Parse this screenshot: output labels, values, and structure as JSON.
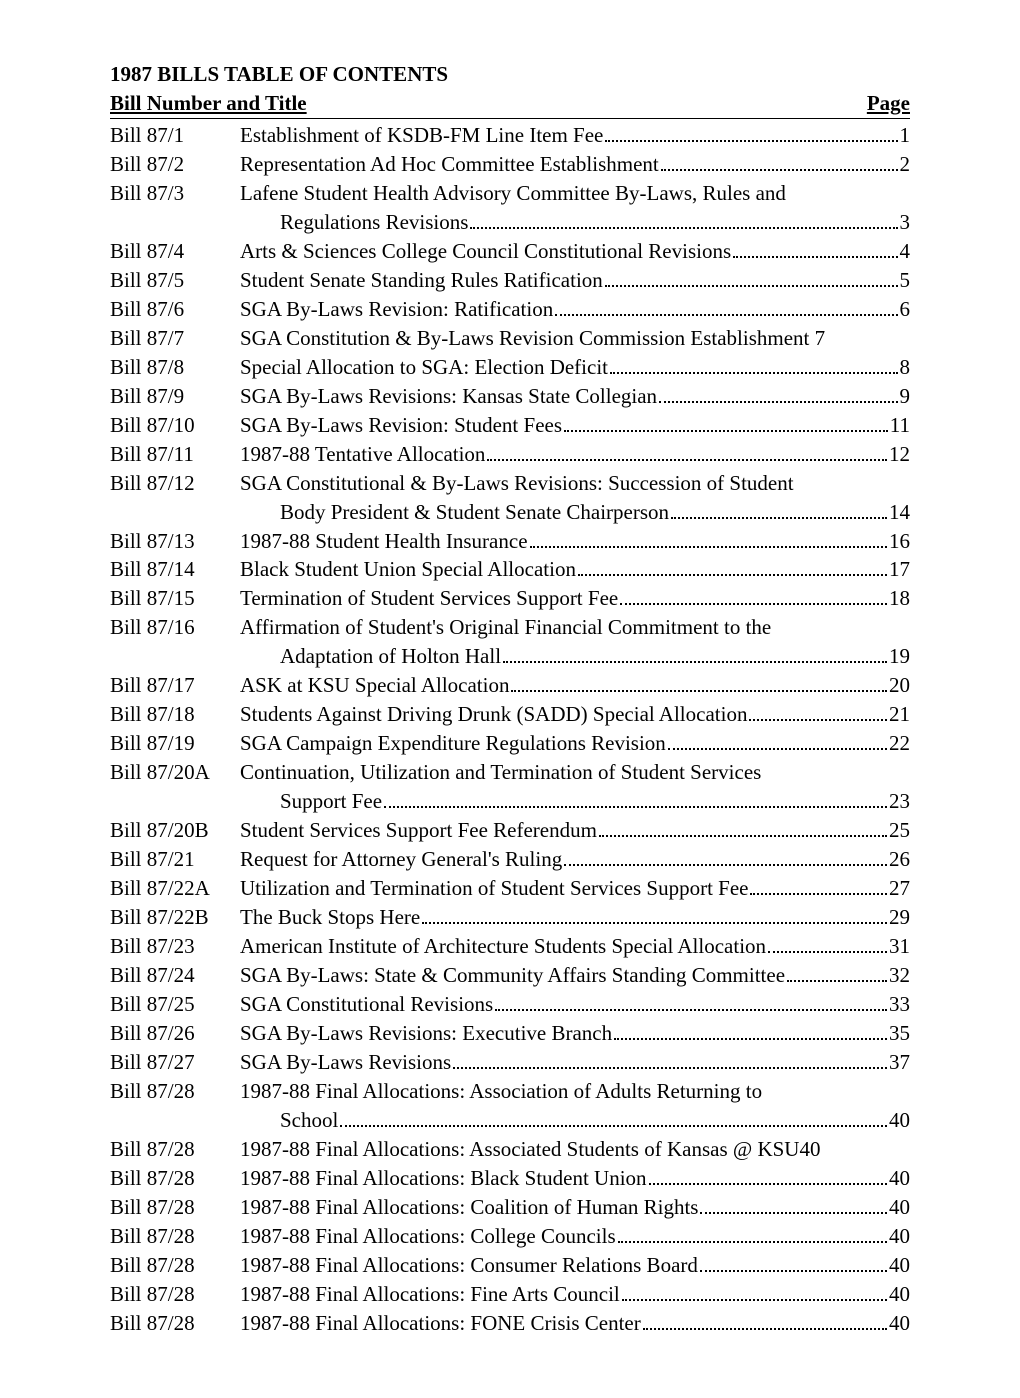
{
  "heading": "1987 BILLS TABLE OF CONTENTS",
  "subhead_left": "Bill Number and Title",
  "subhead_right": "Page",
  "entries": [
    {
      "num": "Bill 87/1",
      "lines": [
        {
          "t": "Establishment of KSDB-FM Line Item Fee",
          "p": "1"
        }
      ]
    },
    {
      "num": "Bill 87/2",
      "lines": [
        {
          "t": "Representation Ad Hoc Committee Establishment",
          "p": "2"
        }
      ]
    },
    {
      "num": "Bill 87/3",
      "lines": [
        {
          "t": "Lafene Student Health Advisory Committee By-Laws, Rules and",
          "p": ""
        },
        {
          "t": "Regulations Revisions",
          "p": "3",
          "indent": true
        }
      ]
    },
    {
      "num": "Bill 87/4",
      "lines": [
        {
          "t": "Arts & Sciences College Council Constitutional Revisions",
          "p": "4"
        }
      ]
    },
    {
      "num": "Bill 87/5",
      "lines": [
        {
          "t": "Student Senate Standing Rules Ratification",
          "p": "5"
        }
      ]
    },
    {
      "num": "Bill 87/6",
      "lines": [
        {
          "t": "SGA By-Laws Revision: Ratification",
          "p": "6"
        }
      ]
    },
    {
      "num": "Bill 87/7",
      "lines": [
        {
          "t": "SGA Constitution & By-Laws Revision Commission Establishment 7",
          "p": "",
          "nodots": true
        }
      ]
    },
    {
      "num": "Bill 87/8",
      "lines": [
        {
          "t": "Special Allocation to SGA: Election Deficit",
          "p": "8"
        }
      ]
    },
    {
      "num": "Bill 87/9",
      "lines": [
        {
          "t": "SGA By-Laws Revisions: Kansas State Collegian",
          "p": "9"
        }
      ]
    },
    {
      "num": "Bill 87/10",
      "lines": [
        {
          "t": "SGA By-Laws Revision: Student Fees",
          "p": "11"
        }
      ]
    },
    {
      "num": "Bill 87/11",
      "lines": [
        {
          "t": "1987-88 Tentative Allocation",
          "p": "12"
        }
      ]
    },
    {
      "num": "Bill 87/12",
      "lines": [
        {
          "t": "SGA Constitutional & By-Laws Revisions: Succession of Student",
          "p": ""
        },
        {
          "t": "Body President & Student Senate Chairperson",
          "p": "14",
          "indent": true
        }
      ]
    },
    {
      "num": "Bill 87/13",
      "lines": [
        {
          "t": "1987-88 Student Health Insurance",
          "p": "16"
        }
      ]
    },
    {
      "num": "Bill 87/14",
      "lines": [
        {
          "t": "Black Student Union Special Allocation",
          "p": "17"
        }
      ]
    },
    {
      "num": "Bill 87/15",
      "lines": [
        {
          "t": "Termination of Student Services Support Fee",
          "p": "18"
        }
      ]
    },
    {
      "num": "Bill 87/16",
      "lines": [
        {
          "t": "Affirmation of Student's Original Financial Commitment to the",
          "p": ""
        },
        {
          "t": "Adaptation of Holton Hall",
          "p": "19",
          "indent": true
        }
      ]
    },
    {
      "num": "Bill 87/17",
      "lines": [
        {
          "t": "ASK at KSU Special Allocation",
          "p": "20"
        }
      ]
    },
    {
      "num": "Bill 87/18",
      "lines": [
        {
          "t": "Students Against Driving Drunk (SADD) Special Allocation",
          "p": "21"
        }
      ]
    },
    {
      "num": "Bill 87/19",
      "lines": [
        {
          "t": "SGA Campaign Expenditure Regulations Revision",
          "p": "22"
        }
      ]
    },
    {
      "num": "Bill 87/20A",
      "lines": [
        {
          "t": "Continuation, Utilization and Termination of Student Services",
          "p": ""
        },
        {
          "t": "Support Fee",
          "p": "23",
          "indent": true
        }
      ]
    },
    {
      "num": "Bill 87/20B",
      "lines": [
        {
          "t": "Student Services Support Fee Referendum",
          "p": "25"
        }
      ]
    },
    {
      "num": "Bill 87/21",
      "lines": [
        {
          "t": "Request for Attorney General's Ruling",
          "p": "26"
        }
      ]
    },
    {
      "num": "Bill 87/22A",
      "lines": [
        {
          "t": "Utilization and Termination of Student Services Support Fee",
          "p": "27"
        }
      ]
    },
    {
      "num": "Bill 87/22B",
      "lines": [
        {
          "t": "The Buck Stops Here",
          "p": "29"
        }
      ]
    },
    {
      "num": "Bill 87/23",
      "lines": [
        {
          "t": "American Institute of Architecture Students Special Allocation",
          "p": "31"
        }
      ]
    },
    {
      "num": "Bill 87/24",
      "lines": [
        {
          "t": "SGA By-Laws: State & Community Affairs Standing Committee",
          "p": "32"
        }
      ]
    },
    {
      "num": "Bill 87/25",
      "lines": [
        {
          "t": "SGA Constitutional Revisions",
          "p": "33"
        }
      ]
    },
    {
      "num": "Bill 87/26",
      "lines": [
        {
          "t": "SGA By-Laws Revisions: Executive Branch",
          "p": "35"
        }
      ]
    },
    {
      "num": "Bill 87/27",
      "lines": [
        {
          "t": "SGA By-Laws Revisions",
          "p": "37"
        }
      ]
    },
    {
      "num": "Bill 87/28",
      "lines": [
        {
          "t": "1987-88 Final Allocations: Association of Adults Returning to",
          "p": ""
        },
        {
          "t": "School",
          "p": "40",
          "indent": true
        }
      ]
    },
    {
      "num": "Bill 87/28",
      "lines": [
        {
          "t": "1987-88 Final Allocations: Associated Students of Kansas @ KSU40",
          "p": "",
          "nodots": true
        }
      ]
    },
    {
      "num": "Bill 87/28",
      "lines": [
        {
          "t": "1987-88 Final Allocations: Black Student Union",
          "p": "40"
        }
      ]
    },
    {
      "num": "Bill 87/28",
      "lines": [
        {
          "t": "1987-88 Final Allocations: Coalition of Human Rights",
          "p": "40"
        }
      ]
    },
    {
      "num": "Bill 87/28",
      "lines": [
        {
          "t": "1987-88 Final Allocations: College Councils",
          "p": "40"
        }
      ]
    },
    {
      "num": "Bill 87/28",
      "lines": [
        {
          "t": "1987-88 Final Allocations:  Consumer Relations Board",
          "p": "40"
        }
      ]
    },
    {
      "num": "Bill 87/28",
      "lines": [
        {
          "t": "1987-88 Final Allocations: Fine Arts Council",
          "p": "40"
        }
      ]
    },
    {
      "num": "Bill 87/28",
      "lines": [
        {
          "t": "1987-88 Final Allocations: FONE Crisis Center",
          "p": "40"
        }
      ]
    }
  ]
}
